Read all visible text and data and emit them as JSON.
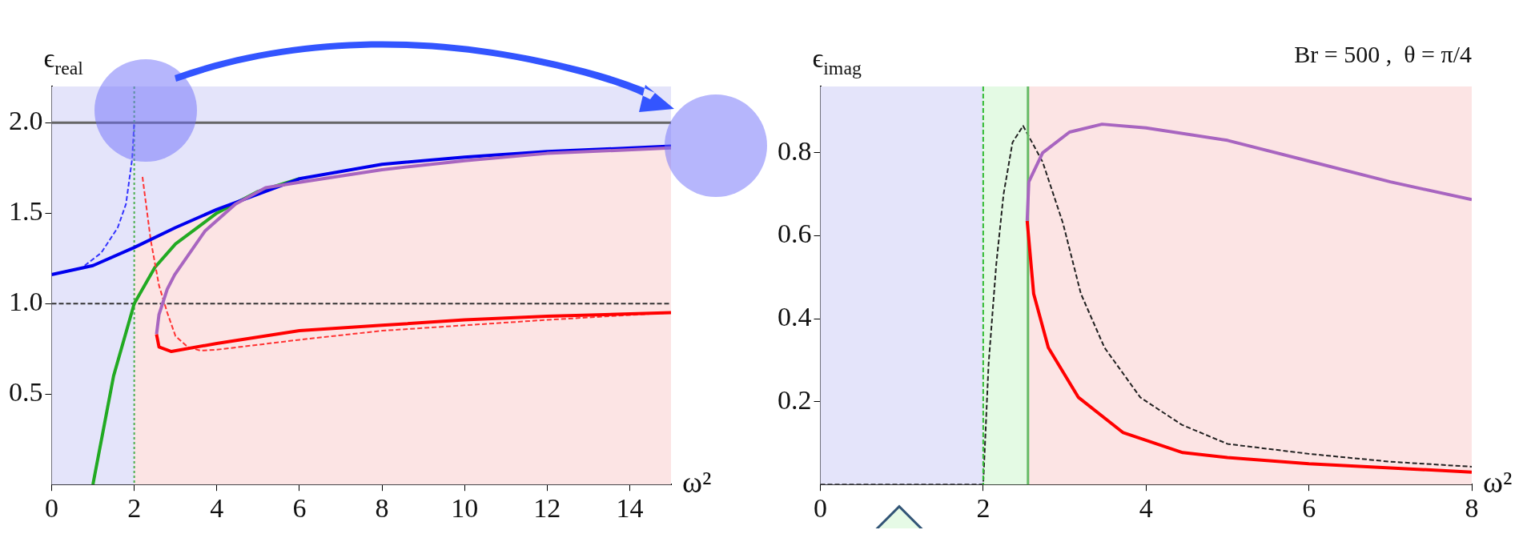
{
  "chart_data": [
    {
      "type": "line",
      "xlabel": "ω²",
      "ylabel": "ϵ$_{real}$",
      "xlim": [
        0,
        15
      ],
      "ylim": [
        0,
        2.2
      ],
      "xticks": [
        0,
        2,
        4,
        6,
        8,
        10,
        12,
        14
      ],
      "yticks": [
        {
          "value": 0.5,
          "label": "0.5"
        },
        {
          "value": 1,
          "label": "1.0"
        },
        {
          "value": 1.5,
          "label": "1.5"
        },
        {
          "value": 2,
          "label": "2.0"
        }
      ],
      "grid": false,
      "legend": false,
      "bands": [
        {
          "axis": "x",
          "from": 0,
          "to": 15,
          "color": "#e4e4fa"
        }
      ],
      "ref_lines": [
        {
          "axis": "y",
          "value": 2,
          "color": "#666666",
          "line_style": "solid"
        },
        {
          "axis": "y",
          "value": 1,
          "color": "#333333",
          "line_style": "dashed"
        },
        {
          "axis": "x",
          "value": 2,
          "color": "#4caf50",
          "line_style": "dotted"
        }
      ],
      "series": [
        {
          "type": "area",
          "color": "#fce4e4",
          "x": [
            2,
            3,
            4,
            6,
            8,
            10,
            12,
            15
          ],
          "values": [
            1.31,
            1.42,
            1.52,
            1.69,
            1.77,
            1.81,
            1.84,
            1.87
          ]
        },
        {
          "type": "line",
          "color": "#22aa22",
          "line_style": "solid",
          "x": [
            1,
            1.5,
            2,
            2.5,
            3,
            4,
            5,
            6
          ],
          "values": [
            0,
            0.6,
            1,
            1.2,
            1.33,
            1.5,
            1.62,
            1.69
          ]
        },
        {
          "type": "line",
          "color": "#3333ff",
          "line_style": "dashed",
          "x": [
            0.8,
            1.2,
            1.6,
            1.8,
            1.95,
            2
          ],
          "values": [
            1.21,
            1.28,
            1.42,
            1.55,
            1.8,
            2
          ]
        },
        {
          "type": "line",
          "color": "#ff3333",
          "line_style": "dashed",
          "x": [
            2.2,
            2.4,
            2.6,
            2.8,
            3,
            3.3,
            3.6,
            4,
            6,
            8,
            10,
            12,
            15
          ],
          "values": [
            1.7,
            1.35,
            1.1,
            0.95,
            0.82,
            0.76,
            0.74,
            0.745,
            0.8,
            0.85,
            0.88,
            0.91,
            0.95
          ]
        },
        {
          "type": "line",
          "color": "#0000ee",
          "line_style": "solid",
          "x": [
            0,
            1,
            2,
            3,
            4,
            6,
            8,
            10,
            12,
            15
          ],
          "values": [
            1.16,
            1.21,
            1.31,
            1.42,
            1.52,
            1.69,
            1.77,
            1.81,
            1.84,
            1.87
          ]
        },
        {
          "type": "line",
          "color": "#a865c0",
          "line_style": "solid",
          "x": [
            2.54,
            2.6,
            2.8,
            2.98,
            3.71,
            4.45,
            5.18,
            6,
            8,
            10,
            12,
            15
          ],
          "values": [
            0.83,
            0.94,
            1.08,
            1.16,
            1.4,
            1.55,
            1.64,
            1.67,
            1.74,
            1.79,
            1.83,
            1.86
          ]
        },
        {
          "type": "line",
          "color": "#ff0000",
          "line_style": "solid",
          "x": [
            2.54,
            2.6,
            2.9,
            4,
            6,
            8,
            10,
            12,
            15
          ],
          "values": [
            0.83,
            0.76,
            0.735,
            0.78,
            0.85,
            0.88,
            0.91,
            0.93,
            0.95
          ]
        }
      ]
    },
    {
      "type": "line",
      "xlabel": "ω²",
      "ylabel": "ϵ$_{imag}$",
      "annotations": [
        "Br = 500 ,  θ = π/4"
      ],
      "xlim": [
        0,
        8
      ],
      "ylim": [
        0,
        0.96
      ],
      "xticks": [
        0,
        2,
        4,
        6,
        8
      ],
      "yticks": [
        0.2,
        0.4,
        0.6,
        0.8
      ],
      "grid": false,
      "legend": false,
      "bands": [
        {
          "axis": "x",
          "from": 0,
          "to": 2,
          "color": "#e4e4fa"
        },
        {
          "axis": "x",
          "from": 2,
          "to": 2.55,
          "color": "#e4fae4"
        },
        {
          "axis": "x",
          "from": 2.55,
          "to": 8,
          "color": "#fce4e4"
        }
      ],
      "ref_lines": [
        {
          "axis": "x",
          "value": 2,
          "color": "#33bb33",
          "line_style": "dashed"
        },
        {
          "axis": "x",
          "value": 2.55,
          "color": "#66bb66",
          "line_style": "solid"
        }
      ],
      "series": [
        {
          "type": "line",
          "color": "#222222",
          "line_style": "dashed",
          "x": [
            0,
            2,
            2.066,
            2.16,
            2.25,
            2.36,
            2.49,
            2.73,
            2.98,
            3.2,
            3.49,
            3.93,
            4.44,
            5,
            6,
            7,
            8
          ],
          "values": [
            0,
            0,
            0.29,
            0.53,
            0.7,
            0.825,
            0.865,
            0.778,
            0.63,
            0.46,
            0.33,
            0.21,
            0.144,
            0.098,
            0.074,
            0.055,
            0.043
          ]
        },
        {
          "type": "line",
          "color": "#ff0000",
          "line_style": "solid",
          "x": [
            2.54,
            2.62,
            2.8,
            3.17,
            3.72,
            4.45,
            5,
            6,
            8
          ],
          "values": [
            0.636,
            0.46,
            0.33,
            0.21,
            0.125,
            0.077,
            0.065,
            0.05,
            0.03
          ]
        },
        {
          "type": "line",
          "color": "#a865c0",
          "line_style": "solid",
          "x": [
            2.54,
            2.56,
            2.73,
            3.06,
            3.46,
            4,
            5,
            6,
            7,
            8
          ],
          "values": [
            0.636,
            0.73,
            0.8,
            0.85,
            0.869,
            0.86,
            0.83,
            0.78,
            0.73,
            0.687
          ]
        }
      ]
    }
  ]
}
